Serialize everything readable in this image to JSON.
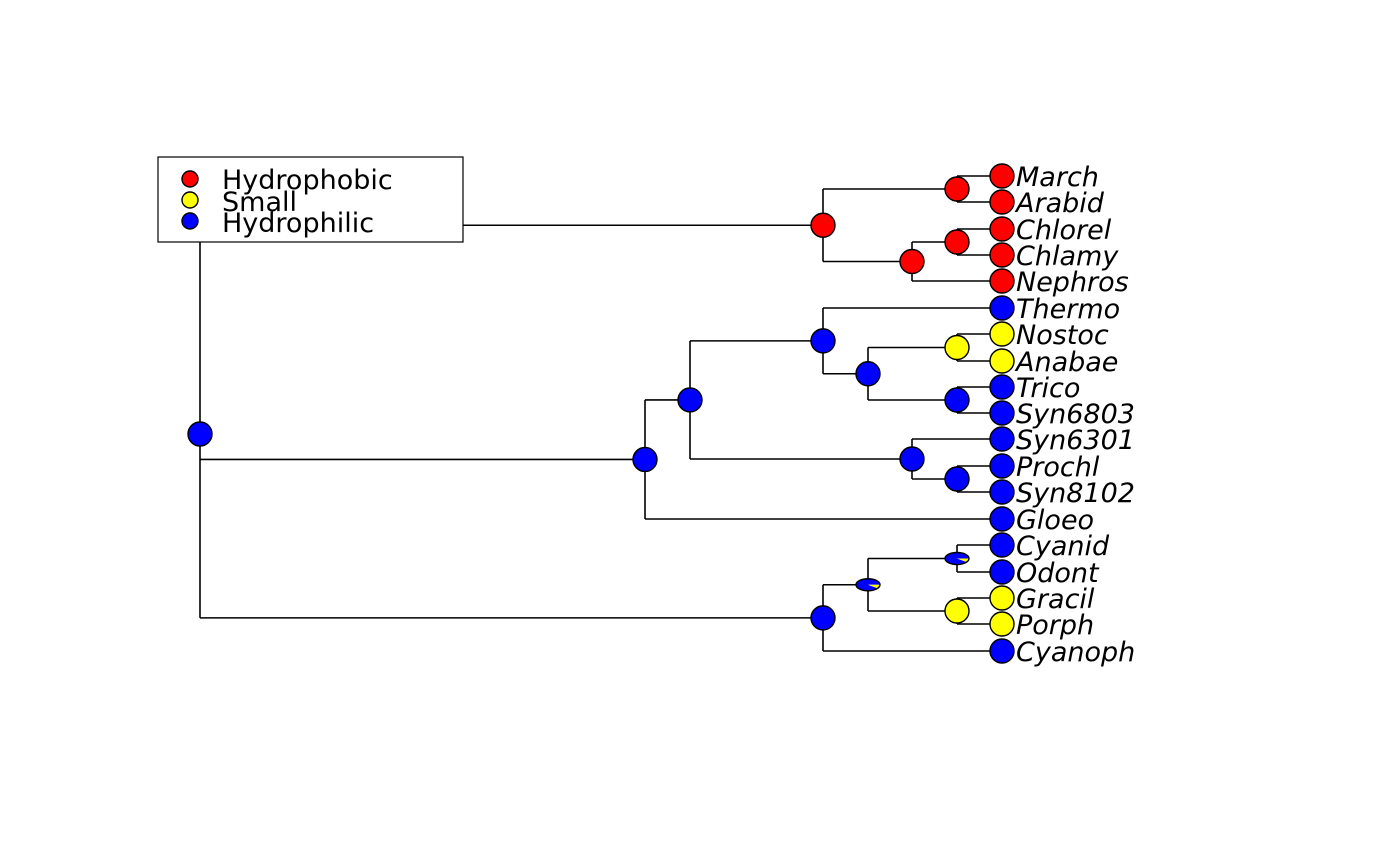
{
  "legend": {
    "entries": [
      {
        "label": "Hydrophobic",
        "color": "#ff0000"
      },
      {
        "label": "Small",
        "color": "#ffff00"
      },
      {
        "label": "Hydrophilic",
        "color": "#0000ff"
      }
    ]
  },
  "colors": {
    "Hydrophobic": "#ff0000",
    "Small": "#ffff00",
    "Hydrophilic": "#0000ff"
  },
  "tree": {
    "tips": [
      {
        "label": "March",
        "state": "Hydrophobic"
      },
      {
        "label": "Arabid",
        "state": "Hydrophobic"
      },
      {
        "label": "Chlorel",
        "state": "Hydrophobic"
      },
      {
        "label": "Chlamy",
        "state": "Hydrophobic"
      },
      {
        "label": "Nephros",
        "state": "Hydrophobic"
      },
      {
        "label": "Thermo",
        "state": "Hydrophilic"
      },
      {
        "label": "Nostoc",
        "state": "Small"
      },
      {
        "label": "Anabae",
        "state": "Small"
      },
      {
        "label": "Trico",
        "state": "Hydrophilic"
      },
      {
        "label": "Syn6803",
        "state": "Hydrophilic"
      },
      {
        "label": "Syn6301",
        "state": "Hydrophilic"
      },
      {
        "label": "Prochl",
        "state": "Hydrophilic"
      },
      {
        "label": "Syn8102",
        "state": "Hydrophilic"
      },
      {
        "label": "Gloeo",
        "state": "Hydrophilic"
      },
      {
        "label": "Cyanid",
        "state": "Hydrophilic"
      },
      {
        "label": "Odont",
        "state": "Hydrophilic"
      },
      {
        "label": "Gracil",
        "state": "Small"
      },
      {
        "label": "Porph",
        "state": "Small"
      },
      {
        "label": "Cyanoph",
        "state": "Hydrophilic"
      }
    ],
    "nodes": [
      {
        "id": "root",
        "children": [
          "plants",
          "cyanoCore",
          "redGroup"
        ],
        "probs": {
          "Hydrophilic": 1
        }
      },
      {
        "id": "plants",
        "children": [
          "marchArabid",
          "chloroGroup"
        ],
        "probs": {
          "Hydrophobic": 1
        }
      },
      {
        "id": "marchArabid",
        "children": [
          "March",
          "Arabid"
        ],
        "probs": {
          "Hydrophobic": 1
        }
      },
      {
        "id": "chloroGroup",
        "children": [
          "chlorelChlamy",
          "Nephros"
        ],
        "probs": {
          "Hydrophobic": 1
        }
      },
      {
        "id": "chlorelChlamy",
        "children": [
          "Chlorel",
          "Chlamy"
        ],
        "probs": {
          "Hydrophobic": 1
        }
      },
      {
        "id": "cyanoCore",
        "children": [
          "cyanoA",
          "Gloeo"
        ],
        "probs": {
          "Hydrophilic": 1
        }
      },
      {
        "id": "cyanoA",
        "children": [
          "thermoGroup",
          "synGroup"
        ],
        "probs": {
          "Hydrophilic": 1
        }
      },
      {
        "id": "thermoGroup",
        "children": [
          "Thermo",
          "nostocTrico"
        ],
        "probs": {
          "Hydrophilic": 1
        }
      },
      {
        "id": "nostocTrico",
        "children": [
          "nostocAnabae",
          "tricoSyn"
        ],
        "probs": {
          "Hydrophilic": 1
        }
      },
      {
        "id": "nostocAnabae",
        "children": [
          "Nostoc",
          "Anabae"
        ],
        "probs": {
          "Small": 1
        }
      },
      {
        "id": "tricoSyn",
        "children": [
          "Trico",
          "Syn6803"
        ],
        "probs": {
          "Hydrophilic": 1
        }
      },
      {
        "id": "synGroup",
        "children": [
          "Syn6301",
          "prochlSyn"
        ],
        "probs": {
          "Hydrophilic": 1
        }
      },
      {
        "id": "prochlSyn",
        "children": [
          "Prochl",
          "Syn8102"
        ],
        "probs": {
          "Hydrophilic": 1
        }
      },
      {
        "id": "redGroup",
        "children": [
          "redAlgae",
          "Cyanoph"
        ],
        "probs": {
          "Hydrophilic": 1
        }
      },
      {
        "id": "redAlgae",
        "children": [
          "cyanidOdont",
          "gracilPorph"
        ],
        "probs": {
          "Hydrophilic": 0.9,
          "Small": 0.1
        }
      },
      {
        "id": "cyanidOdont",
        "children": [
          "Cyanid",
          "Odont"
        ],
        "probs": {
          "Hydrophilic": 0.9,
          "Small": 0.1
        }
      },
      {
        "id": "gracilPorph",
        "children": [
          "Gracil",
          "Porph"
        ],
        "probs": {
          "Small": 1
        }
      }
    ]
  }
}
